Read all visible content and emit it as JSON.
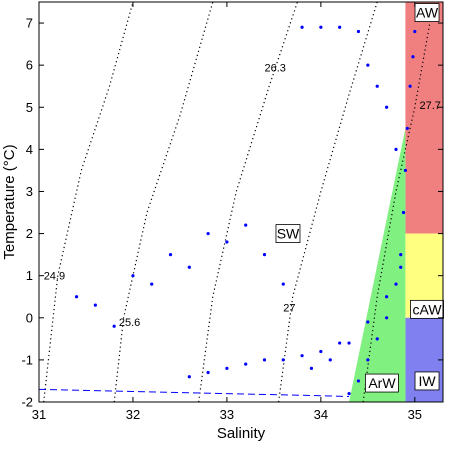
{
  "chart_data": {
    "type": "scatter",
    "xlabel": "Salinity",
    "ylabel": "Temperature (°C)",
    "xlim": [
      31,
      35.3
    ],
    "ylim": [
      -2,
      7.5
    ],
    "x_ticks": [
      31,
      32,
      33,
      34,
      35
    ],
    "y_ticks": [
      -2,
      -1,
      0,
      1,
      2,
      3,
      4,
      5,
      6,
      7
    ],
    "grid": false,
    "marker_color": "#0000ff",
    "freezing_line": {
      "style": "dashed",
      "color": "#0000ff",
      "points": [
        [
          31.0,
          -1.7
        ],
        [
          32.0,
          -1.75
        ],
        [
          33.0,
          -1.8
        ],
        [
          34.0,
          -1.85
        ],
        [
          34.3,
          -1.87
        ]
      ]
    },
    "isopycnals": [
      {
        "label": "24.9",
        "label_at": [
          31.05,
          1.0
        ],
        "points": [
          [
            31.05,
            -2.0
          ],
          [
            31.2,
            1.0
          ],
          [
            31.45,
            3.5
          ],
          [
            31.75,
            5.5
          ],
          [
            32.0,
            7.5
          ]
        ]
      },
      {
        "label": "25.6",
        "label_at": [
          31.85,
          -0.1
        ],
        "points": [
          [
            31.8,
            -2.0
          ],
          [
            31.9,
            0.0
          ],
          [
            32.15,
            2.5
          ],
          [
            32.5,
            4.8
          ],
          [
            32.85,
            7.5
          ]
        ]
      },
      {
        "label": "26.3",
        "label_at": [
          33.4,
          5.95
        ],
        "points": [
          [
            32.7,
            -2.0
          ],
          [
            32.85,
            0.5
          ],
          [
            33.1,
            3.0
          ],
          [
            33.45,
            5.5
          ],
          [
            33.75,
            7.5
          ]
        ]
      },
      {
        "label": "27",
        "label_at": [
          33.6,
          0.25
        ],
        "points": [
          [
            33.55,
            -2.0
          ],
          [
            33.7,
            0.5
          ],
          [
            34.0,
            3.0
          ],
          [
            34.3,
            5.3
          ],
          [
            34.6,
            7.5
          ]
        ]
      },
      {
        "label": "27.7",
        "label_at": [
          35.05,
          5.05
        ],
        "points": [
          [
            34.45,
            -2.0
          ],
          [
            34.6,
            0.5
          ],
          [
            34.8,
            3.0
          ],
          [
            35.0,
            5.0
          ],
          [
            35.2,
            7.5
          ]
        ]
      }
    ],
    "water_masses": [
      {
        "label": "AW",
        "color": "#f08080",
        "s_range": [
          34.9,
          35.3
        ],
        "t_range": [
          2.0,
          7.5
        ]
      },
      {
        "label": "cAW",
        "color": "#ffff80",
        "s_range": [
          34.9,
          35.3
        ],
        "t_range": [
          0.0,
          2.0
        ]
      },
      {
        "label": "IW",
        "color": "#8080f0",
        "s_range": [
          34.9,
          35.3
        ],
        "t_range": [
          -2.0,
          0.0
        ]
      },
      {
        "label": "ArW",
        "color": "#80f080",
        "polygon": [
          [
            34.3,
            -2.0
          ],
          [
            34.9,
            -2.0
          ],
          [
            34.9,
            4.5
          ],
          [
            34.3,
            -2.0
          ]
        ]
      },
      {
        "label": "SW",
        "color": null
      }
    ],
    "water_mass_label_positions": {
      "AW": [
        35.13,
        7.25
      ],
      "cAW": [
        35.13,
        0.2
      ],
      "IW": [
        35.13,
        -1.5
      ],
      "ArW": [
        34.65,
        -1.55
      ],
      "SW": [
        33.65,
        2.0
      ]
    },
    "scatter_series": [
      {
        "s": [
          34.3,
          34.4,
          34.5,
          34.6,
          34.7,
          34.8,
          34.85,
          34.88,
          34.9,
          34.92,
          34.95,
          34.98,
          35.0,
          35.02,
          35.05
        ],
        "t": [
          -1.8,
          -1.5,
          -1.0,
          -0.5,
          0.0,
          0.8,
          1.5,
          2.5,
          3.5,
          4.5,
          5.5,
          6.2,
          6.8,
          7.2,
          7.4
        ]
      },
      {
        "s": [
          31.4,
          31.6,
          31.8,
          32.0,
          32.2,
          32.4,
          32.6,
          32.8,
          33.0,
          33.2,
          33.4,
          33.6
        ],
        "t": [
          0.5,
          0.3,
          -0.2,
          1.0,
          0.8,
          1.5,
          1.2,
          2.0,
          1.8,
          2.2,
          1.5,
          0.8
        ]
      },
      {
        "s": [
          32.6,
          32.8,
          33.0,
          33.2,
          33.4,
          33.6,
          33.8,
          34.0,
          34.2
        ],
        "t": [
          -1.4,
          -1.3,
          -1.2,
          -1.1,
          -1.0,
          -1.0,
          -0.9,
          -0.8,
          -0.6
        ]
      },
      {
        "s": [
          33.8,
          34.0,
          34.2,
          34.4,
          34.5,
          34.6,
          34.7,
          34.8
        ],
        "t": [
          6.9,
          6.9,
          6.9,
          6.8,
          6.0,
          5.5,
          5.0,
          4.0
        ]
      },
      {
        "s": [
          33.9,
          34.1,
          34.3,
          34.5,
          34.7,
          34.85
        ],
        "t": [
          -1.2,
          -1.0,
          -0.6,
          -0.1,
          0.5,
          1.2
        ]
      }
    ]
  }
}
